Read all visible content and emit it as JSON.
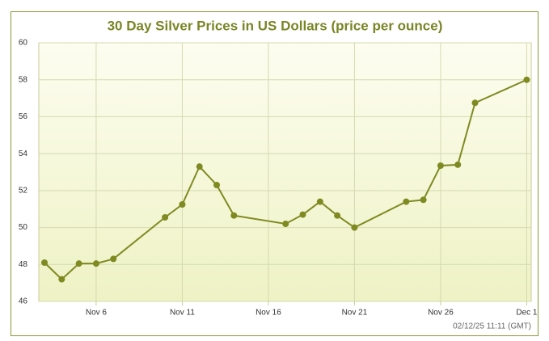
{
  "chart_data": {
    "type": "line",
    "title": "30 Day Silver Prices in US Dollars (price per ounce)",
    "footer": "02/12/25 11:11 (GMT)",
    "x": [
      "Nov 3",
      "Nov 4",
      "Nov 5",
      "Nov 6",
      "Nov 7",
      "Nov 10",
      "Nov 11",
      "Nov 12",
      "Nov 13",
      "Nov 14",
      "Nov 17",
      "Nov 18",
      "Nov 19",
      "Nov 20",
      "Nov 21",
      "Nov 24",
      "Nov 25",
      "Nov 26",
      "Nov 27",
      "Nov 28",
      "Dec 1"
    ],
    "series": [
      {
        "color": "#7f8a22",
        "values": [
          48.1,
          47.2,
          48.05,
          48.05,
          48.3,
          50.55,
          51.25,
          53.3,
          52.3,
          50.65,
          50.2,
          50.7,
          51.4,
          50.65,
          50.0,
          51.4,
          51.5,
          53.35,
          53.4,
          56.75,
          58.0
        ]
      }
    ],
    "xticks": [
      "Nov 6",
      "Nov 11",
      "Nov 16",
      "Nov 21",
      "Nov 26",
      "Dec 1"
    ],
    "ylim": [
      46,
      60
    ],
    "yticks": [
      46,
      48,
      50,
      52,
      54,
      56,
      58,
      60
    ],
    "grid": true
  }
}
